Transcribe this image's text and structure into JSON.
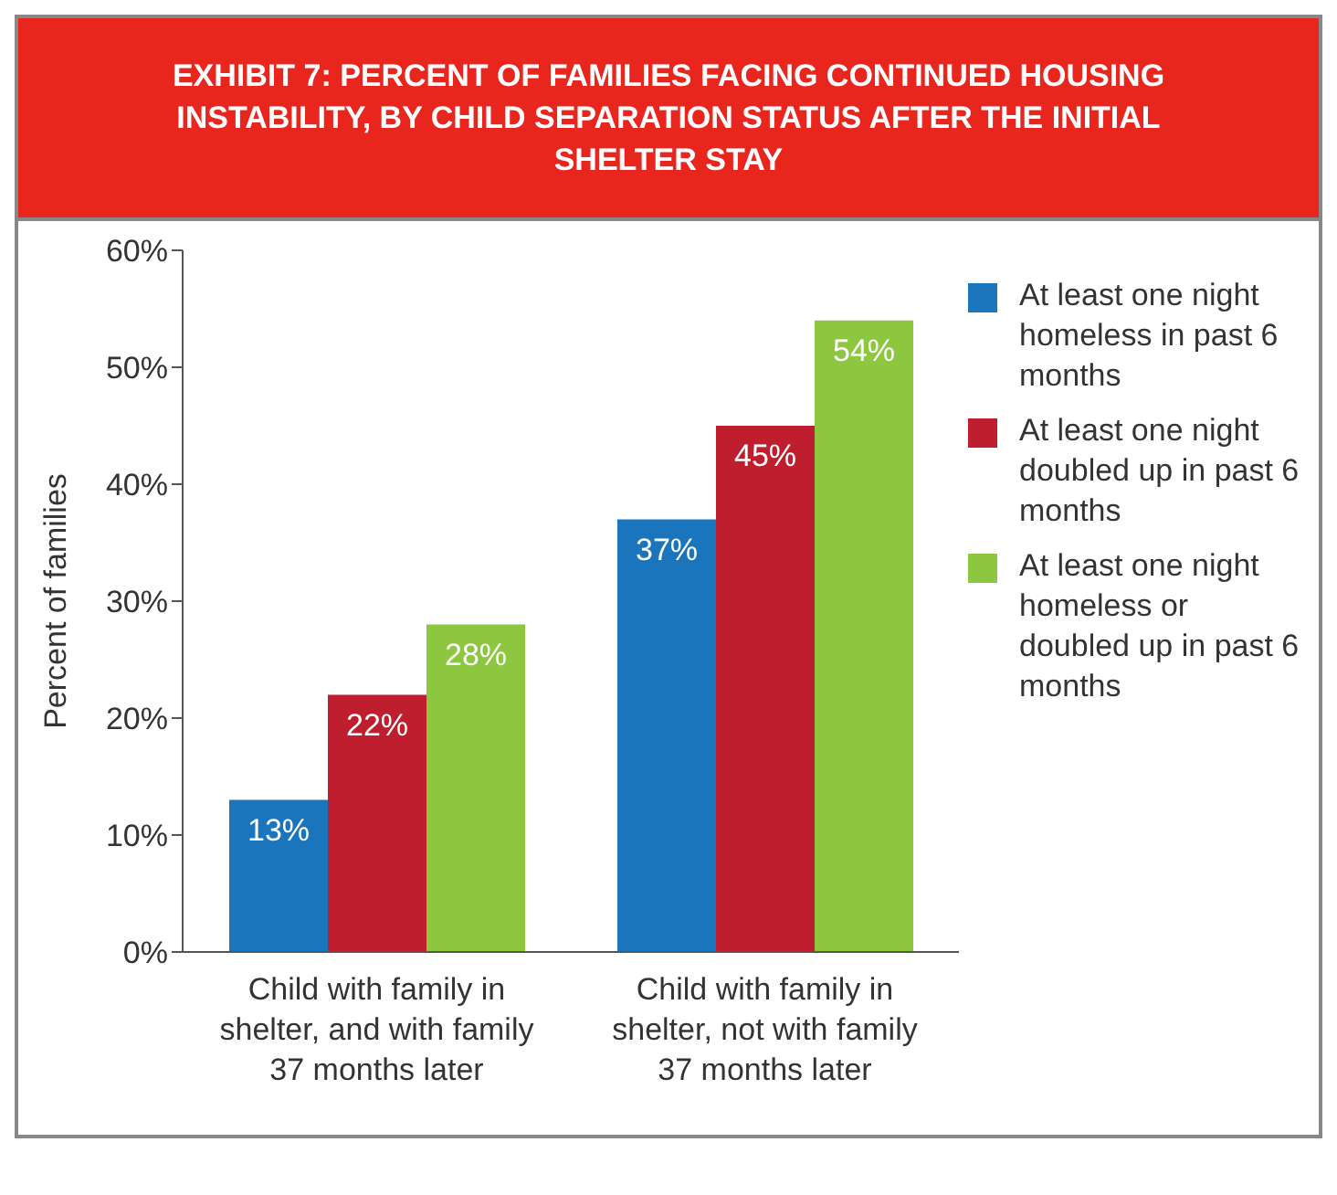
{
  "chart_data": {
    "type": "bar",
    "title": "EXHIBIT 7: PERCENT OF FAMILIES FACING CONTINUED HOUSING INSTABILITY, BY CHILD SEPARATION STATUS AFTER THE INITIAL SHELTER STAY",
    "ylabel": "Percent of families",
    "categories": [
      "Child with family in shelter, and with family 37 months later",
      "Child with family in shelter, not with family 37 months later"
    ],
    "series": [
      {
        "name": "At least one night homeless in past 6 months",
        "color": "#1a75bc",
        "values": [
          13,
          37
        ],
        "value_labels": [
          "13%",
          "37%"
        ]
      },
      {
        "name": "At least one night doubled up in past 6 months",
        "color": "#be1e2d",
        "values": [
          22,
          45
        ],
        "value_labels": [
          "22%",
          "45%"
        ]
      },
      {
        "name": "At least one night homeless or doubled up in past 6 months",
        "color": "#8dc63f",
        "values": [
          28,
          54
        ],
        "value_labels": [
          "28%",
          "54%"
        ]
      }
    ],
    "ylim": [
      0,
      60
    ],
    "yticks": [
      {
        "value": 0,
        "label": "0%"
      },
      {
        "value": 10,
        "label": "10%"
      },
      {
        "value": 20,
        "label": "20%"
      },
      {
        "value": 30,
        "label": "30%"
      },
      {
        "value": 40,
        "label": "40%"
      },
      {
        "value": 50,
        "label": "50%"
      },
      {
        "value": 60,
        "label": "60%"
      }
    ],
    "grid": false,
    "legend": "right"
  }
}
